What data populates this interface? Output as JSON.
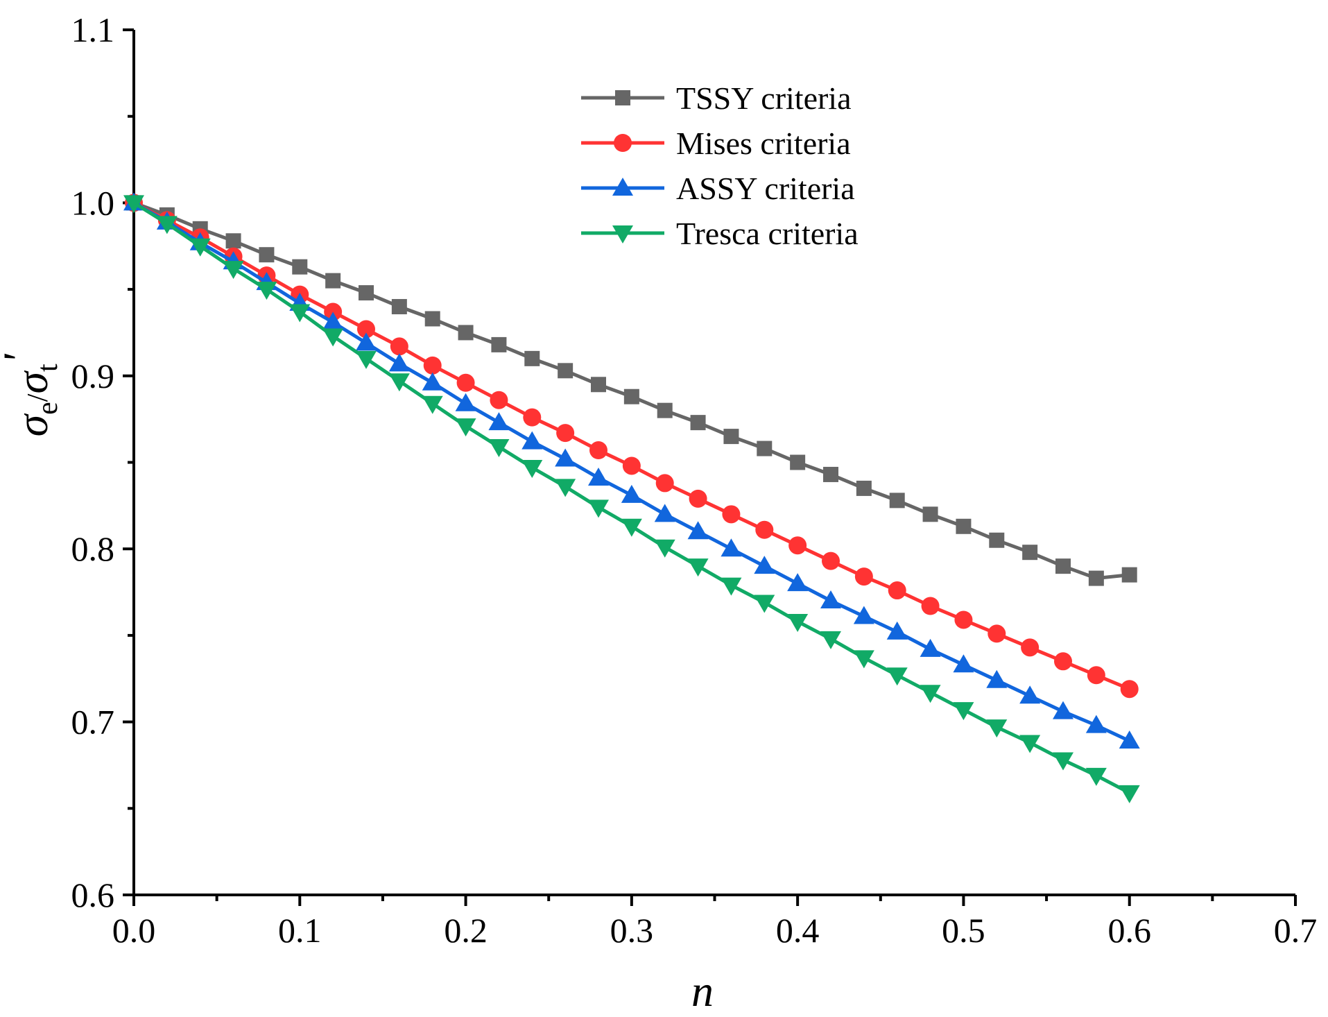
{
  "chart_data": {
    "type": "line",
    "title": "",
    "xlabel": "n",
    "ylabel": {
      "base": "σ",
      "sub1": "e",
      "sep": "/",
      "sub2": "t",
      "prime": "'"
    },
    "xlim": [
      0.0,
      0.7
    ],
    "ylim": [
      0.6,
      1.1
    ],
    "x_ticks": [
      "0.0",
      "0.1",
      "0.2",
      "0.3",
      "0.4",
      "0.5",
      "0.6",
      "0.7"
    ],
    "y_ticks": [
      "0.6",
      "0.7",
      "0.8",
      "0.9",
      "1.0",
      "1.1"
    ],
    "grid": false,
    "legend_position": "top-center",
    "x": [
      0.0,
      0.02,
      0.04,
      0.06,
      0.08,
      0.1,
      0.12,
      0.14,
      0.16,
      0.18,
      0.2,
      0.22,
      0.24,
      0.26,
      0.28,
      0.3,
      0.32,
      0.34,
      0.36,
      0.38,
      0.4,
      0.42,
      0.44,
      0.46,
      0.48,
      0.5,
      0.52,
      0.54,
      0.56,
      0.58,
      0.6
    ],
    "series": [
      {
        "name": "TSSY criteria",
        "color": "#666666",
        "marker": "square",
        "values": [
          1.0,
          0.993,
          0.985,
          0.978,
          0.97,
          0.963,
          0.955,
          0.948,
          0.94,
          0.933,
          0.925,
          0.918,
          0.91,
          0.903,
          0.895,
          0.888,
          0.88,
          0.873,
          0.865,
          0.858,
          0.85,
          0.843,
          0.835,
          0.828,
          0.82,
          0.813,
          0.805,
          0.798,
          0.79,
          0.783,
          0.785
        ]
      },
      {
        "name": "Mises criteria",
        "color": "#ff3333",
        "marker": "circle",
        "values": [
          1.0,
          0.99,
          0.98,
          0.969,
          0.958,
          0.947,
          0.937,
          0.927,
          0.917,
          0.906,
          0.896,
          0.886,
          0.876,
          0.867,
          0.857,
          0.848,
          0.838,
          0.829,
          0.82,
          0.811,
          0.802,
          0.793,
          0.784,
          0.776,
          0.767,
          0.759,
          0.751,
          0.743,
          0.735,
          0.727,
          0.719
        ]
      },
      {
        "name": "ASSY criteria",
        "color": "#1166dd",
        "marker": "triangle-up",
        "values": [
          1.0,
          0.989,
          0.977,
          0.966,
          0.954,
          0.942,
          0.931,
          0.919,
          0.907,
          0.896,
          0.884,
          0.873,
          0.862,
          0.852,
          0.841,
          0.831,
          0.82,
          0.81,
          0.8,
          0.79,
          0.78,
          0.77,
          0.761,
          0.752,
          0.742,
          0.733,
          0.724,
          0.715,
          0.706,
          0.698,
          0.689
        ]
      },
      {
        "name": "Tresca criteria",
        "color": "#11aa66",
        "marker": "triangle-down",
        "values": [
          1.0,
          0.988,
          0.975,
          0.962,
          0.95,
          0.937,
          0.923,
          0.91,
          0.897,
          0.884,
          0.871,
          0.859,
          0.847,
          0.836,
          0.824,
          0.813,
          0.801,
          0.79,
          0.779,
          0.769,
          0.758,
          0.748,
          0.737,
          0.727,
          0.717,
          0.707,
          0.697,
          0.688,
          0.678,
          0.669,
          0.659
        ]
      }
    ]
  }
}
